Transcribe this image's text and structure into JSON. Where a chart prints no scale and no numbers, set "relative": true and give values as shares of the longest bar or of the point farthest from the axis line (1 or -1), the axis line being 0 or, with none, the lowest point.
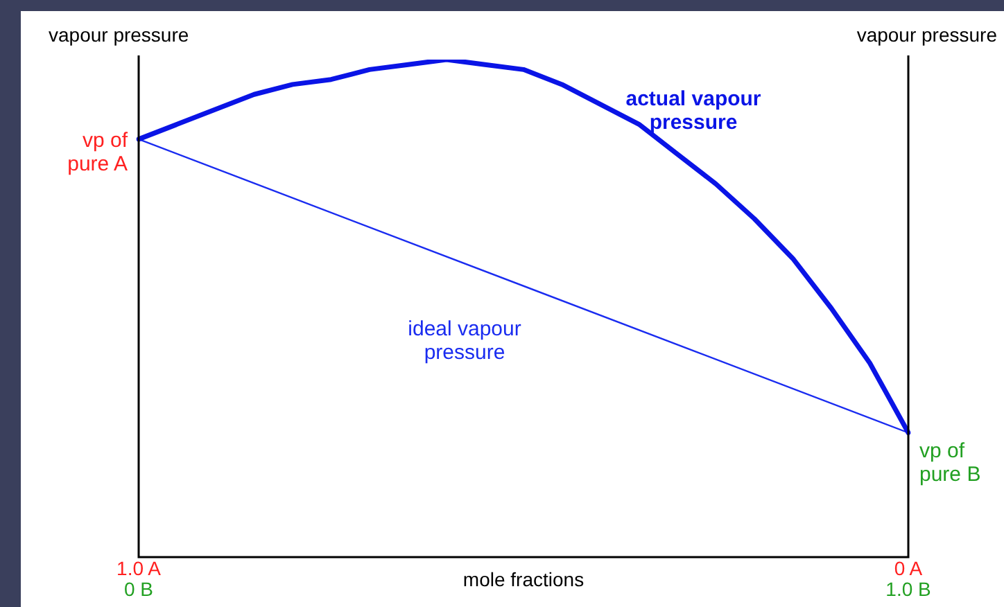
{
  "chart_data": {
    "type": "line",
    "relative": true,
    "ylabel": "vapour pressure",
    "y2label": "vapour pressure",
    "xlabel": "mole fractions",
    "categories": [
      null,
      null,
      null,
      null,
      null,
      null,
      null,
      null,
      null,
      null,
      null,
      null,
      null,
      null,
      null,
      null,
      null,
      null,
      null,
      null,
      null
    ],
    "series": [
      {
        "name": "actual vapour pressure",
        "color": "#0a14e6",
        "values": [
          0.84,
          0.87,
          0.9,
          0.93,
          0.95,
          0.96,
          0.98,
          0.99,
          1.0,
          0.99,
          0.98,
          0.95,
          0.91,
          0.87,
          0.81,
          0.75,
          0.68,
          0.6,
          0.5,
          0.39,
          0.25
        ]
      },
      {
        "name": "ideal vapour pressure",
        "color": "#1a2cf0",
        "values": [
          0.84,
          null,
          null,
          null,
          null,
          null,
          null,
          null,
          null,
          null,
          null,
          null,
          null,
          null,
          null,
          null,
          null,
          null,
          null,
          null,
          0.25
        ]
      }
    ],
    "annotations": [
      "vp of pure A",
      "vp of pure B",
      "1.0 A",
      "0 B",
      "0 A",
      "1.0 B"
    ],
    "legend": false,
    "marker": "none",
    "line_style": "solid"
  }
}
